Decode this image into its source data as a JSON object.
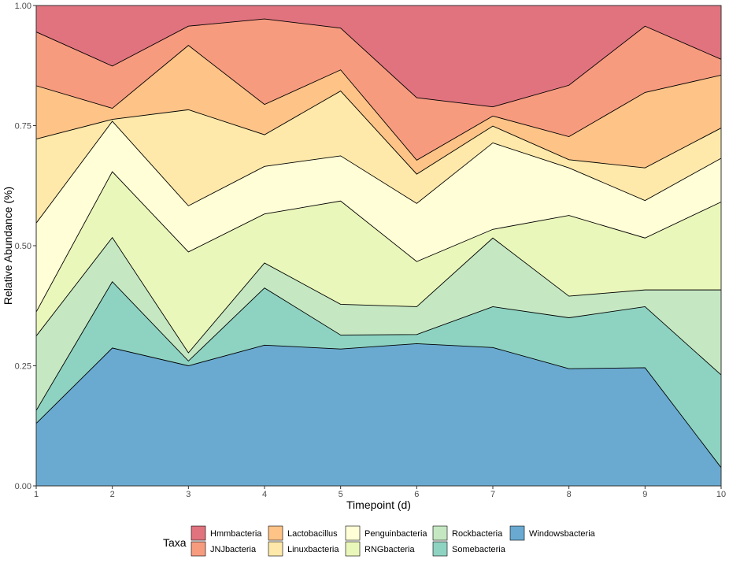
{
  "chart_data": {
    "type": "area",
    "stacked": true,
    "xlabel": "Timepoint (d)",
    "ylabel": "Relative Abundance (%)",
    "x": [
      1,
      2,
      3,
      4,
      5,
      6,
      7,
      8,
      9,
      10
    ],
    "xlim": [
      1,
      10
    ],
    "ylim": [
      0,
      1
    ],
    "yticks": [
      "0.00",
      "0.25",
      "0.50",
      "0.75",
      "1.00"
    ],
    "grid": true,
    "legend": {
      "title": "Taxa",
      "position": "bottom"
    },
    "series": [
      {
        "name": "Windowsbacteria",
        "color": "#6aaad0",
        "values": [
          0.13,
          0.287,
          0.25,
          0.293,
          0.285,
          0.296,
          0.288,
          0.244,
          0.246,
          0.038
        ]
      },
      {
        "name": "Somebacteria",
        "color": "#8ed3c2",
        "values": [
          0.027,
          0.138,
          0.01,
          0.119,
          0.029,
          0.019,
          0.085,
          0.106,
          0.127,
          0.193
        ]
      },
      {
        "name": "Rockbacteria",
        "color": "#c5e8c3",
        "values": [
          0.155,
          0.092,
          0.017,
          0.052,
          0.064,
          0.058,
          0.143,
          0.045,
          0.035,
          0.177
        ]
      },
      {
        "name": "RNGbacteria",
        "color": "#eaf7ba",
        "values": [
          0.05,
          0.137,
          0.21,
          0.102,
          0.215,
          0.094,
          0.018,
          0.168,
          0.108,
          0.183
        ]
      },
      {
        "name": "Penguinbacteria",
        "color": "#fffed6",
        "values": [
          0.185,
          0.105,
          0.096,
          0.099,
          0.094,
          0.121,
          0.18,
          0.099,
          0.078,
          0.091
        ]
      },
      {
        "name": "Linuxbacteria",
        "color": "#fee9aa",
        "values": [
          0.175,
          0.004,
          0.2,
          0.066,
          0.135,
          0.061,
          0.035,
          0.017,
          0.068,
          0.063
        ]
      },
      {
        "name": "Lactobacillus",
        "color": "#fdc387",
        "values": [
          0.111,
          0.023,
          0.134,
          0.063,
          0.044,
          0.029,
          0.021,
          0.048,
          0.157,
          0.11
        ]
      },
      {
        "name": "JNJbacteria",
        "color": "#f79b7f",
        "values": [
          0.112,
          0.088,
          0.04,
          0.178,
          0.087,
          0.13,
          0.019,
          0.107,
          0.138,
          0.033
        ]
      },
      {
        "name": "Hmmbacteria",
        "color": "#e0737e",
        "values": [
          0.055,
          0.126,
          0.043,
          0.028,
          0.047,
          0.192,
          0.211,
          0.166,
          0.043,
          0.112
        ]
      }
    ],
    "legend_order": [
      "Hmmbacteria",
      "JNJbacteria",
      "Lactobacillus",
      "Linuxbacteria",
      "Penguinbacteria",
      "RNGbacteria",
      "Rockbacteria",
      "Somebacteria",
      "Windowsbacteria"
    ]
  }
}
